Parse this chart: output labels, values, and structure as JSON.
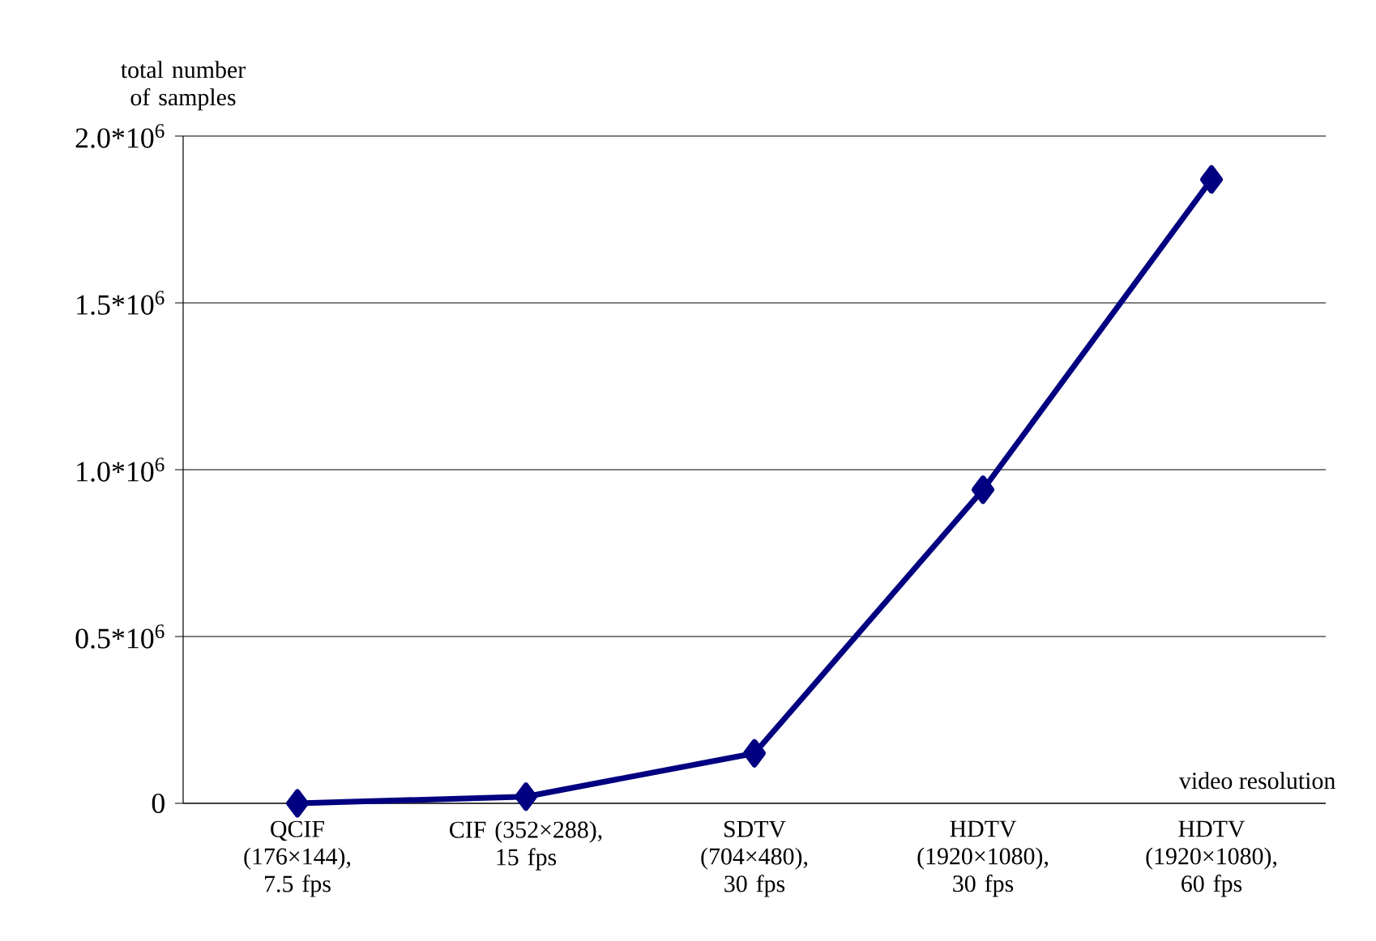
{
  "chart_data": {
    "type": "line",
    "xlabel": "video resolution",
    "ylabel": "total number of samples",
    "categories": [
      "QCIF (176×144), 7.5 fps",
      "CIF (352×288), 15 fps",
      "SDTV (704×480), 30 fps",
      "HDTV (1920×1080), 30 fps",
      "HDTV (1920×1080), 60 fps"
    ],
    "series": [
      {
        "color": "#000080",
        "values": [
          0,
          20000,
          150000,
          940000,
          1870000
        ]
      }
    ],
    "ylim": [
      0,
      2000000
    ],
    "yticks": [
      0,
      {
        "value": 500000,
        "label": "0.5*10$^{6}$"
      },
      {
        "value": 1000000,
        "label": "1.0*10$^{6}$"
      },
      {
        "value": 1500000,
        "label": "1.5*10$^{6}$"
      },
      {
        "value": 2000000,
        "label": "2.0*10$^{6}$"
      }
    ],
    "grid": "y",
    "marker": "diamond",
    "line_style": "solid"
  }
}
